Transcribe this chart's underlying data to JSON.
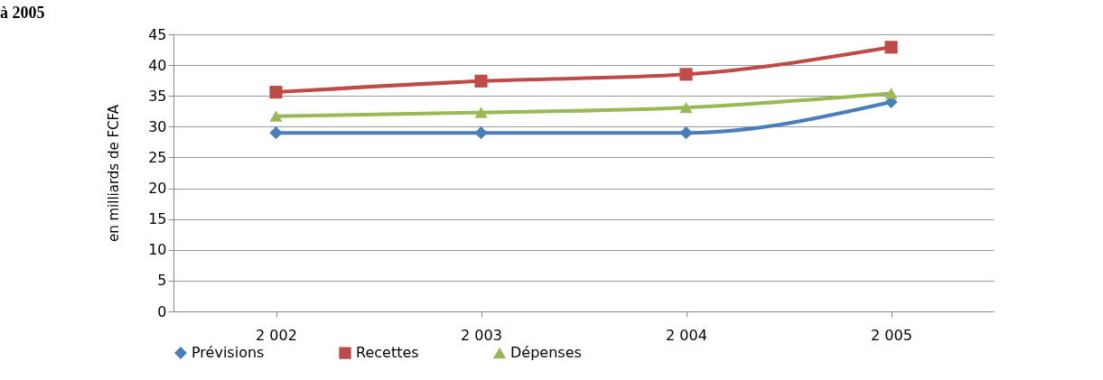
{
  "chart_data": {
    "type": "line",
    "title": "à 2005",
    "ylabel": "en milliards de FCFA",
    "categories": [
      "2 002",
      "2 003",
      "2 004",
      "2 005"
    ],
    "series": [
      {
        "name": "Prévisions",
        "color": "#4a7ebb",
        "marker": "diamond",
        "values": [
          29,
          29,
          29,
          34
        ]
      },
      {
        "name": "Recettes",
        "color": "#be4b48",
        "marker": "square",
        "values": [
          35.6,
          37.4,
          38.5,
          42.9
        ]
      },
      {
        "name": "Dépenses",
        "color": "#98b954",
        "marker": "triangle",
        "values": [
          31.7,
          32.3,
          33.1,
          35.4
        ]
      }
    ],
    "ylim": [
      0,
      45
    ],
    "yticks": [
      0,
      5,
      10,
      15,
      20,
      25,
      30,
      35,
      40,
      45
    ],
    "grid": "y",
    "legend": "bottom"
  }
}
